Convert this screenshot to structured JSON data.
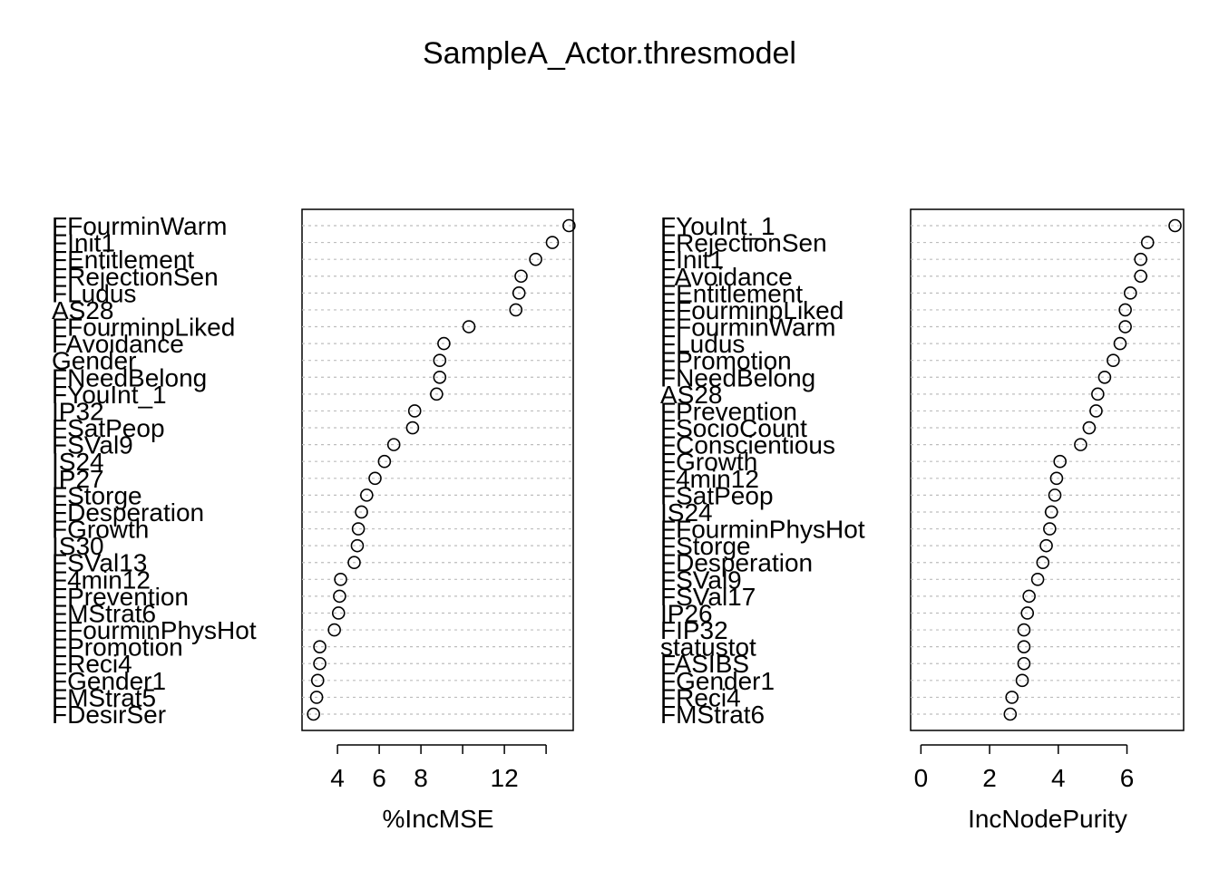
{
  "chart_data": {
    "title": "SampleA_Actor.thresmodel",
    "panels": [
      {
        "type": "scatter",
        "xlabel": "%IncMSE",
        "xlim": [
          2.3,
          15.3
        ],
        "xticks": [
          2,
          4,
          6,
          8,
          10,
          12,
          14
        ],
        "xtick_labels": [
          "4",
          "6",
          "8",
          "12"
        ],
        "labeled_ticks": [
          4,
          6,
          8,
          12
        ],
        "grid": true,
        "points": [
          {
            "label": "FFourminWarm",
            "value": 15.1
          },
          {
            "label": "FInit1",
            "value": 14.3
          },
          {
            "label": "FEntitlement",
            "value": 13.5
          },
          {
            "label": "FRejectionSen",
            "value": 12.8
          },
          {
            "label": "FLudus",
            "value": 12.7
          },
          {
            "label": "AS28",
            "value": 12.55
          },
          {
            "label": "FFourminpLiked",
            "value": 10.3
          },
          {
            "label": "FAvoidance",
            "value": 9.1
          },
          {
            "label": "Gender",
            "value": 8.9
          },
          {
            "label": "FNeedBelong",
            "value": 8.9
          },
          {
            "label": "FYouInt_1",
            "value": 8.75
          },
          {
            "label": "IP32",
            "value": 7.7
          },
          {
            "label": "FSatPeop",
            "value": 7.6
          },
          {
            "label": "FSVal9",
            "value": 6.7
          },
          {
            "label": "IS24",
            "value": 6.25
          },
          {
            "label": "IP27",
            "value": 5.8
          },
          {
            "label": "FStorge",
            "value": 5.4
          },
          {
            "label": "FDesperation",
            "value": 5.15
          },
          {
            "label": "FGrowth",
            "value": 5.0
          },
          {
            "label": "IS30",
            "value": 4.95
          },
          {
            "label": "FSVal13",
            "value": 4.8
          },
          {
            "label": "F4min12",
            "value": 4.15
          },
          {
            "label": "FPrevention",
            "value": 4.1
          },
          {
            "label": "FMStrat6",
            "value": 4.05
          },
          {
            "label": "FFourminPhysHot",
            "value": 3.85
          },
          {
            "label": "FPromotion",
            "value": 3.15
          },
          {
            "label": "FReci4",
            "value": 3.15
          },
          {
            "label": "FGender1",
            "value": 3.05
          },
          {
            "label": "FMStrat5",
            "value": 3.0
          },
          {
            "label": "FDesirSer",
            "value": 2.85
          }
        ]
      },
      {
        "type": "scatter",
        "xlabel": "IncNodePurity",
        "xlim": [
          -0.3,
          7.65
        ],
        "xticks": [
          0,
          2,
          4,
          6
        ],
        "xtick_labels": [
          "0",
          "2",
          "4",
          "6"
        ],
        "labeled_ticks": [
          0,
          2,
          4,
          6
        ],
        "grid": true,
        "points": [
          {
            "label": "FYouInt_1",
            "value": 7.4
          },
          {
            "label": "FRejectionSen",
            "value": 6.6
          },
          {
            "label": "FInit1",
            "value": 6.4
          },
          {
            "label": "FAvoidance",
            "value": 6.4
          },
          {
            "label": "FEntitlement",
            "value": 6.1
          },
          {
            "label": "FFourminpLiked",
            "value": 5.95
          },
          {
            "label": "FFourminWarm",
            "value": 5.95
          },
          {
            "label": "FLudus",
            "value": 5.8
          },
          {
            "label": "FPromotion",
            "value": 5.6
          },
          {
            "label": "FNeedBelong",
            "value": 5.35
          },
          {
            "label": "AS28",
            "value": 5.15
          },
          {
            "label": "FPrevention",
            "value": 5.1
          },
          {
            "label": "FSocioCount",
            "value": 4.9
          },
          {
            "label": "FConscientious",
            "value": 4.65
          },
          {
            "label": "FGrowth",
            "value": 4.05
          },
          {
            "label": "F4min12",
            "value": 3.95
          },
          {
            "label": "FSatPeop",
            "value": 3.9
          },
          {
            "label": "IS24",
            "value": 3.8
          },
          {
            "label": "FFourminPhysHot",
            "value": 3.75
          },
          {
            "label": "FStorge",
            "value": 3.65
          },
          {
            "label": "FDesperation",
            "value": 3.55
          },
          {
            "label": "FSVal9",
            "value": 3.4
          },
          {
            "label": "FSVal17",
            "value": 3.15
          },
          {
            "label": "IP26",
            "value": 3.1
          },
          {
            "label": "FIP32",
            "value": 3.0
          },
          {
            "label": "statustot",
            "value": 3.0
          },
          {
            "label": "FASIBS",
            "value": 3.0
          },
          {
            "label": "FGender1",
            "value": 2.95
          },
          {
            "label": "FReci4",
            "value": 2.65
          },
          {
            "label": "FMStrat6",
            "value": 2.6
          }
        ]
      }
    ]
  }
}
